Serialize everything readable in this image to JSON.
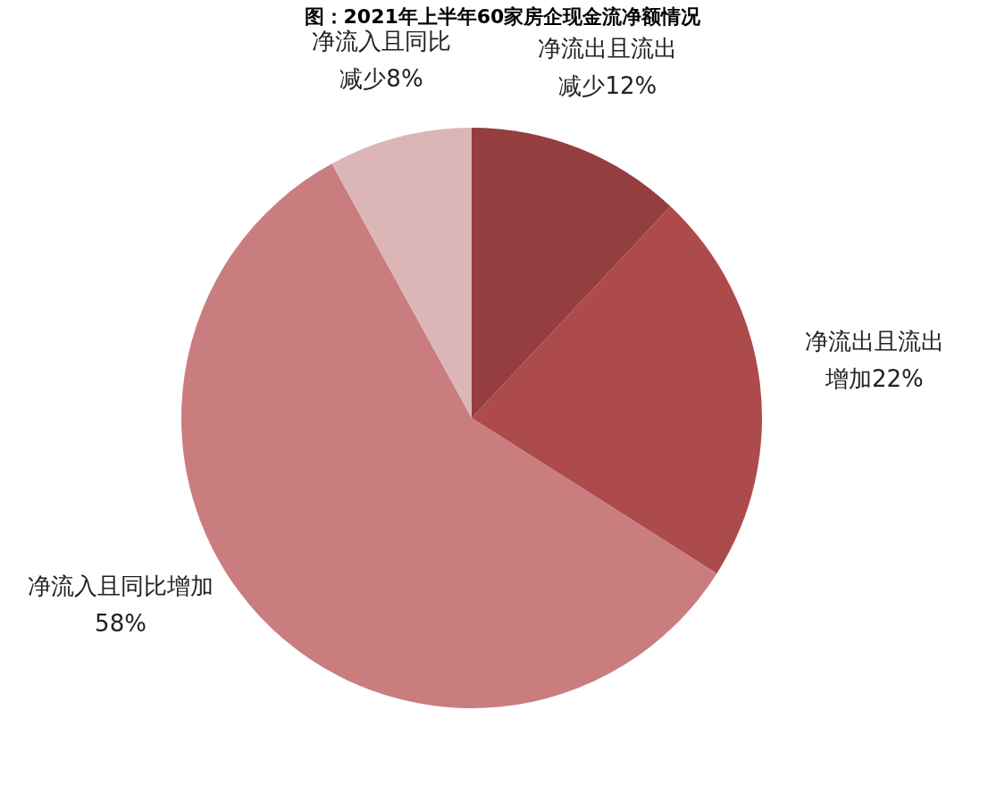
{
  "chart_data": {
    "type": "pie",
    "title": "图：2021年上半年60家房企现金流净额情况",
    "categories": [
      "净流出且流出减少",
      "净流出且流出增加",
      "净流入且同比增加",
      "净流入且同比减少"
    ],
    "values": [
      12,
      22,
      58,
      8
    ],
    "value_labels": [
      "12%",
      "22%",
      "58%",
      "8%"
    ],
    "colors": [
      "#943e40",
      "#ad4a4b",
      "#c97d7f",
      "#dcb6b6"
    ],
    "legend": false
  }
}
